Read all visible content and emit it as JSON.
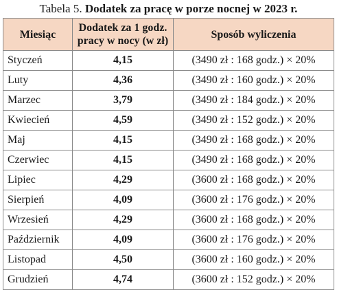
{
  "caption": {
    "prefix": "Tabela 5.",
    "title": "Dodatek za pracę w porze nocnej w 2023 r."
  },
  "table": {
    "headers": {
      "month": "Miesiąc",
      "allowance_line1": "Dodatek za 1 godz.",
      "allowance_line2": "pracy w nocy (w zł)",
      "method": "Sposób wyliczenia"
    },
    "rows": [
      {
        "month": "Styczeń",
        "value": "4,15",
        "calc": "(3490 zł : 168 godz.) × 20%"
      },
      {
        "month": "Luty",
        "value": "4,36",
        "calc": "(3490 zł : 160 godz.) × 20%"
      },
      {
        "month": "Marzec",
        "value": "3,79",
        "calc": "(3490 zł : 184 godz.) × 20%"
      },
      {
        "month": "Kwiecień",
        "value": "4,59",
        "calc": "(3490 zł : 152 godz.) × 20%"
      },
      {
        "month": "Maj",
        "value": "4,15",
        "calc": "(3490 zł : 168 godz.) × 20%"
      },
      {
        "month": "Czerwiec",
        "value": "4,15",
        "calc": "(3490 zł : 168 godz.) × 20%"
      },
      {
        "month": "Lipiec",
        "value": "4,29",
        "calc": "(3600 zł : 168 godz.) × 20%"
      },
      {
        "month": "Sierpień",
        "value": "4,09",
        "calc": "(3600 zł : 176 godz.) × 20%"
      },
      {
        "month": "Wrzesień",
        "value": "4,29",
        "calc": "(3600 zł : 168 godz.) × 20%"
      },
      {
        "month": "Październik",
        "value": "4,09",
        "calc": "(3600 zł : 176 godz.) × 20%"
      },
      {
        "month": "Listopad",
        "value": "4,50",
        "calc": "(3600 zł : 160 godz.) × 20%"
      },
      {
        "month": "Grudzień",
        "value": "4,74",
        "calc": "(3600 zł : 152 godz.) × 20%"
      }
    ]
  },
  "colors": {
    "header_background": "#f6d7c3",
    "border": "#8a8a8a"
  }
}
